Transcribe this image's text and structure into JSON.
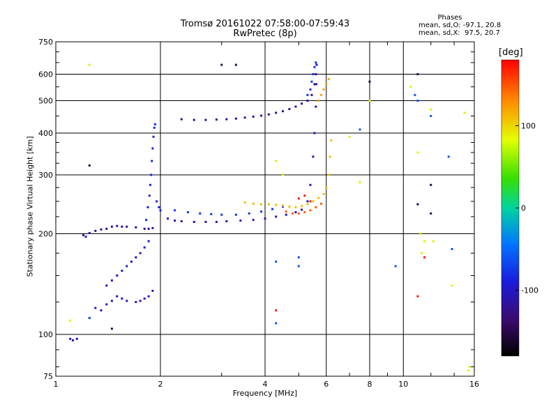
{
  "title_line1": "Tromsø 20161022 07:58:00-07:59:43",
  "title_line2": "RwPretec (8p)",
  "stats": {
    "title": "Phases",
    "line_o": "mean, sd,O: -97.1, 20.8",
    "line_x": "mean, sd,X:  97.5, 20.7"
  },
  "colorbar": {
    "unit": "[deg]",
    "ticks": [
      {
        "label": "100",
        "value": 100
      },
      {
        "label": "0",
        "value": 0
      },
      {
        "label": "-100",
        "value": -100
      }
    ],
    "range": [
      -180,
      180
    ]
  },
  "chart_data": {
    "type": "scatter",
    "xlabel": "Frequency [MHz]",
    "ylabel": "Stationary phase Virtual Height [km]",
    "x_scale": "log",
    "y_scale": "log",
    "xlim": [
      1,
      16
    ],
    "ylim": [
      75,
      750
    ],
    "x_ticks": [
      {
        "label": "1",
        "value": 1
      },
      {
        "label": "2",
        "value": 2
      },
      {
        "label": "4",
        "value": 4
      },
      {
        "label": "6",
        "value": 6
      },
      {
        "label": "8",
        "value": 8
      },
      {
        "label": "10",
        "value": 10
      },
      {
        "label": "16",
        "value": 16
      }
    ],
    "x_grid": [
      2,
      4,
      6,
      8,
      10
    ],
    "y_ticks": [
      {
        "label": "75",
        "value": 75
      },
      {
        "label": "100",
        "value": 100
      },
      {
        "label": "200",
        "value": 200
      },
      {
        "label": "300",
        "value": 300
      },
      {
        "label": "400",
        "value": 400
      },
      {
        "label": "500",
        "value": 500
      },
      {
        "label": "600",
        "value": 600
      },
      {
        "label": "750",
        "value": 750
      }
    ],
    "y_grid": [
      100,
      200,
      300,
      400,
      500,
      600
    ],
    "series": [
      {
        "phase": -100,
        "points": [
          [
            1.1,
            97
          ],
          [
            1.12,
            96
          ],
          [
            1.15,
            97
          ],
          [
            1.25,
            112
          ],
          [
            1.3,
            120
          ],
          [
            1.35,
            118
          ],
          [
            1.4,
            123
          ],
          [
            1.45,
            126
          ],
          [
            1.5,
            130
          ],
          [
            1.55,
            128
          ],
          [
            1.6,
            126
          ],
          [
            1.7,
            125
          ],
          [
            1.75,
            126
          ],
          [
            1.8,
            128
          ],
          [
            1.85,
            130
          ],
          [
            1.9,
            135
          ]
        ]
      },
      {
        "phase": -115,
        "points": [
          [
            1.2,
            198
          ],
          [
            1.22,
            196
          ],
          [
            1.25,
            201
          ],
          [
            1.3,
            204
          ],
          [
            1.35,
            206
          ],
          [
            1.4,
            207
          ],
          [
            1.45,
            210
          ],
          [
            1.5,
            211
          ],
          [
            1.55,
            210
          ],
          [
            1.6,
            210
          ],
          [
            1.7,
            209
          ],
          [
            1.8,
            207
          ],
          [
            1.85,
            207
          ],
          [
            1.9,
            208
          ]
        ]
      },
      {
        "phase": -95,
        "points": [
          [
            1.4,
            140
          ],
          [
            1.45,
            145
          ],
          [
            1.5,
            150
          ],
          [
            1.55,
            155
          ],
          [
            1.6,
            160
          ],
          [
            1.65,
            165
          ],
          [
            1.7,
            170
          ],
          [
            1.75,
            175
          ],
          [
            1.8,
            182
          ],
          [
            1.85,
            190
          ]
        ]
      },
      {
        "phase": -85,
        "points": [
          [
            1.82,
            220
          ],
          [
            1.84,
            240
          ],
          [
            1.86,
            260
          ],
          [
            1.87,
            280
          ],
          [
            1.88,
            300
          ],
          [
            1.89,
            330
          ],
          [
            1.9,
            360
          ],
          [
            1.91,
            390
          ],
          [
            1.92,
            415
          ],
          [
            1.93,
            425
          ],
          [
            1.95,
            250
          ],
          [
            1.98,
            240
          ],
          [
            2.0,
            235
          ]
        ]
      },
      {
        "phase": -105,
        "points": [
          [
            2.1,
            222
          ],
          [
            2.2,
            219
          ],
          [
            2.3,
            218
          ],
          [
            2.5,
            217
          ],
          [
            2.7,
            217
          ],
          [
            2.9,
            217
          ],
          [
            3.1,
            218
          ],
          [
            3.4,
            219
          ],
          [
            3.7,
            220
          ],
          [
            4.0,
            222
          ],
          [
            4.3,
            225
          ],
          [
            4.6,
            228
          ],
          [
            4.9,
            232
          ],
          [
            5.1,
            236
          ],
          [
            5.3,
            250
          ],
          [
            5.4,
            280
          ],
          [
            5.5,
            340
          ],
          [
            5.55,
            400
          ],
          [
            5.6,
            480
          ],
          [
            5.62,
            560
          ],
          [
            5.63,
            640
          ]
        ]
      },
      {
        "phase": -75,
        "points": [
          [
            2.2,
            235
          ],
          [
            2.4,
            232
          ],
          [
            2.6,
            230
          ],
          [
            2.8,
            229
          ],
          [
            3.0,
            228
          ],
          [
            3.3,
            228
          ],
          [
            3.6,
            230
          ],
          [
            3.9,
            233
          ],
          [
            4.2,
            237
          ],
          [
            4.5,
            241
          ]
        ]
      },
      {
        "phase": 110,
        "points": [
          [
            3.5,
            248
          ],
          [
            3.7,
            246
          ],
          [
            3.9,
            245
          ],
          [
            4.1,
            245
          ],
          [
            4.3,
            244
          ],
          [
            4.5,
            243
          ],
          [
            4.7,
            241
          ],
          [
            4.9,
            240
          ],
          [
            5.1,
            242
          ],
          [
            5.3,
            245
          ],
          [
            5.5,
            250
          ],
          [
            5.7,
            256
          ],
          [
            5.9,
            263
          ],
          [
            6.0,
            275
          ],
          [
            6.1,
            300
          ],
          [
            6.15,
            340
          ],
          [
            6.2,
            380
          ]
        ]
      },
      {
        "phase": 145,
        "points": [
          [
            4.6,
            233
          ],
          [
            4.8,
            230
          ],
          [
            5.0,
            230
          ],
          [
            5.2,
            232
          ],
          [
            5.4,
            235
          ],
          [
            5.6,
            240
          ],
          [
            5.8,
            246
          ]
        ]
      },
      {
        "phase": -120,
        "points": [
          [
            2.3,
            440
          ],
          [
            2.5,
            438
          ],
          [
            2.7,
            438
          ],
          [
            2.9,
            439
          ],
          [
            3.1,
            440
          ],
          [
            3.3,
            442
          ],
          [
            3.5,
            445
          ],
          [
            3.7,
            448
          ],
          [
            3.9,
            451
          ],
          [
            4.1,
            455
          ],
          [
            4.3,
            460
          ],
          [
            4.5,
            465
          ],
          [
            4.7,
            472
          ],
          [
            4.9,
            480
          ],
          [
            5.1,
            490
          ],
          [
            5.3,
            500
          ],
          [
            5.45,
            520
          ],
          [
            5.55,
            560
          ],
          [
            5.6,
            600
          ]
        ]
      },
      {
        "phase": -80,
        "points": [
          [
            5.3,
            520
          ],
          [
            5.4,
            540
          ],
          [
            5.45,
            570
          ],
          [
            5.5,
            600
          ],
          [
            5.55,
            630
          ],
          [
            5.6,
            650
          ]
        ]
      },
      {
        "phase": 120,
        "points": [
          [
            5.7,
            500
          ],
          [
            5.8,
            520
          ],
          [
            5.9,
            540
          ],
          [
            6.0,
            560
          ],
          [
            6.1,
            580
          ]
        ]
      },
      {
        "phase": -60,
        "points": [
          [
            1.25,
            112
          ],
          [
            4.3,
            108
          ],
          [
            4.3,
            165
          ],
          [
            5.0,
            170
          ],
          [
            5.0,
            160
          ],
          [
            7.5,
            410
          ],
          [
            9.5,
            160
          ],
          [
            10.8,
            520
          ],
          [
            11,
            500
          ],
          [
            12,
            450
          ],
          [
            13.5,
            340
          ],
          [
            13.8,
            180
          ]
        ]
      },
      {
        "phase": -150,
        "points": [
          [
            1.25,
            320
          ],
          [
            1.45,
            104
          ],
          [
            3.0,
            640
          ],
          [
            3.3,
            640
          ],
          [
            8.0,
            570
          ],
          [
            11,
            600
          ],
          [
            11,
            245
          ],
          [
            12,
            280
          ],
          [
            12,
            230
          ]
        ]
      },
      {
        "phase": 90,
        "points": [
          [
            1.25,
            640
          ],
          [
            1.1,
            110
          ],
          [
            4.3,
            330
          ],
          [
            4.5,
            300
          ],
          [
            7.0,
            390
          ],
          [
            7.5,
            285
          ],
          [
            8,
            500
          ],
          [
            10.5,
            550
          ],
          [
            11,
            350
          ],
          [
            11.2,
            200
          ],
          [
            11.3,
            175
          ],
          [
            11.5,
            190
          ],
          [
            12,
            470
          ],
          [
            12.2,
            190
          ],
          [
            13.8,
            140
          ],
          [
            15,
            460
          ],
          [
            15.5,
            80
          ],
          [
            15.4,
            78
          ]
        ]
      },
      {
        "phase": 170,
        "points": [
          [
            4.3,
            118
          ],
          [
            5.0,
            255
          ],
          [
            5.2,
            260
          ],
          [
            5.4,
            250
          ],
          [
            11,
            130
          ],
          [
            11.5,
            170
          ]
        ]
      }
    ]
  }
}
